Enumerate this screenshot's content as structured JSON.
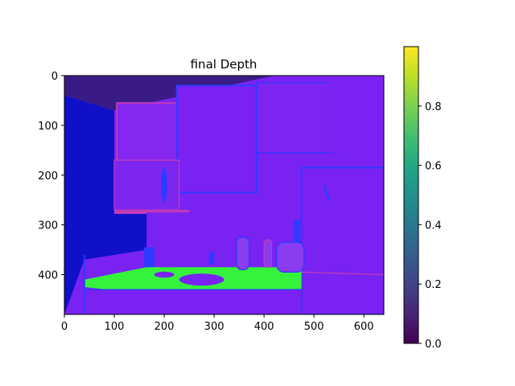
{
  "chart_data": [
    {
      "type": "heatmap",
      "title": "final Depth",
      "xlabel": "",
      "ylabel": "",
      "grid": false,
      "image_width": 640,
      "image_height": 480,
      "xlim": [
        0,
        640
      ],
      "ylim": [
        480,
        0
      ],
      "x_ticks": [
        0,
        100,
        200,
        300,
        400,
        500,
        600
      ],
      "y_ticks": [
        0,
        100,
        200,
        300,
        400
      ],
      "scene": "kitchen surface-normal visualization (cabinets, countertop, sink, bottles, refrigerator)",
      "colors": {
        "wall_left": "#1010c8",
        "ceiling": "#3a1b86",
        "cabinet": "#7a22f2",
        "cabinet_light": "#8a3cf0",
        "countertop": "#35f23c",
        "edge_blue": "#2a3cff",
        "edge_pink": "#c23ab8"
      }
    },
    {
      "type": "colorbar",
      "colormap": "viridis",
      "range": [
        0.0,
        1.0
      ],
      "ticks": [
        0.0,
        0.2,
        0.4,
        0.6,
        0.8
      ],
      "tick_labels": [
        "0.0",
        "0.2",
        "0.4",
        "0.6",
        "0.8"
      ]
    }
  ]
}
